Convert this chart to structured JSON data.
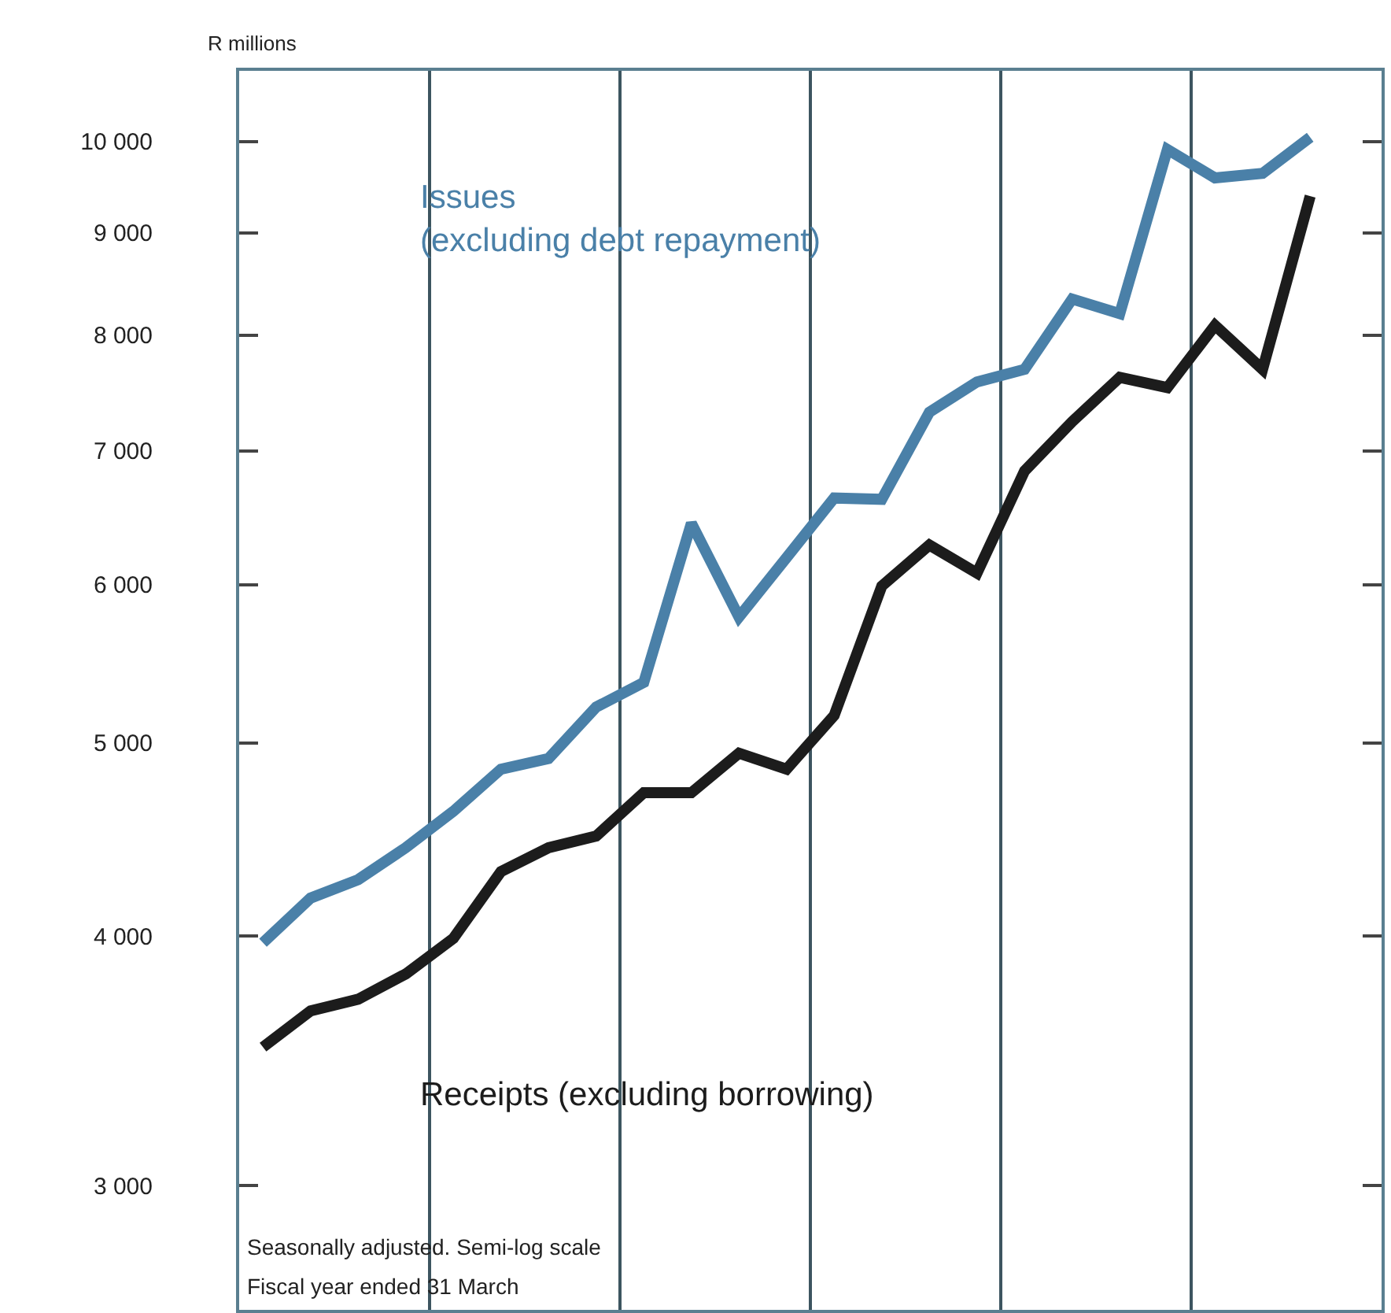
{
  "chart_data": {
    "type": "line",
    "ylabel": "R millions",
    "categories": [
      null,
      null,
      null,
      null,
      null,
      null,
      null,
      null,
      null,
      null,
      null,
      null,
      null,
      null,
      null,
      null,
      null,
      null,
      null,
      null,
      null,
      null,
      null
    ],
    "series": [
      {
        "name": "Issues\n(excluding debt repayment)",
        "color": "#4a80a8",
        "values": [
          3970,
          4180,
          4270,
          4430,
          4620,
          4850,
          4910,
          5210,
          5360,
          6440,
          5780,
          6190,
          6630,
          6620,
          7320,
          7580,
          7690,
          8340,
          8200,
          9910,
          9590,
          9640,
          10050
        ]
      },
      {
        "name": "Receipts (excluding borrowing)",
        "color": "#1c1c1c",
        "values": [
          3520,
          3670,
          3720,
          3830,
          3990,
          4310,
          4430,
          4490,
          4720,
          4720,
          4940,
          4850,
          5160,
          5990,
          6280,
          6080,
          6840,
          7240,
          7620,
          7530,
          8090,
          7690,
          9390
        ]
      }
    ],
    "log": true,
    "ylim": [
      2600,
      10850
    ],
    "yticks": [
      {
        "value": 3000,
        "label": "3 000"
      },
      {
        "value": 4000,
        "label": "4 000"
      },
      {
        "value": 5000,
        "label": "5 000"
      },
      {
        "value": 6000,
        "label": "6 000"
      },
      {
        "value": 7000,
        "label": "7 000"
      },
      {
        "value": 8000,
        "label": "8 000"
      },
      {
        "value": 9000,
        "label": "9 000"
      },
      {
        "value": 10000,
        "label": "10 000"
      }
    ],
    "grid": "x",
    "tick_labels": "y",
    "legend": false,
    "marker": "none",
    "line_style": "solid",
    "annotations": [
      "Seasonally adjusted. Semi-log scale",
      "Fiscal year ended 31 March"
    ]
  }
}
